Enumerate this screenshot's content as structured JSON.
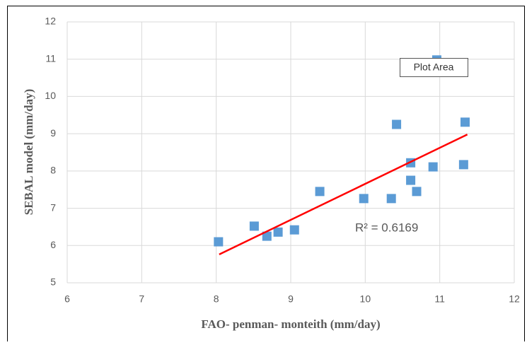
{
  "chart_data": {
    "type": "scatter",
    "x_label": "FAO- penman- monteith (mm/day)",
    "y_label": "SEBAL model (mm/day)",
    "xlim": [
      6,
      12
    ],
    "xticks": [
      6,
      7,
      8,
      9,
      10,
      11,
      12
    ],
    "ylim": [
      5,
      12
    ],
    "yticks": [
      5,
      6,
      7,
      8,
      9,
      10,
      11,
      12
    ],
    "grid": true,
    "series": [
      {
        "color": "#5b9bd5",
        "x": [
          8.03,
          8.51,
          8.68,
          8.83,
          9.05,
          9.39,
          9.98,
          10.35,
          10.42,
          10.61,
          10.61,
          10.69,
          10.91,
          10.96,
          11.32,
          11.34
        ],
        "values": [
          6.1,
          6.52,
          6.25,
          6.36,
          6.42,
          7.45,
          7.26,
          7.26,
          9.25,
          8.22,
          7.75,
          7.45,
          8.11,
          10.98,
          8.17,
          9.31
        ]
      }
    ],
    "trendline": {
      "color": "#ff0000",
      "x": [
        8.04,
        11.37
      ],
      "values": [
        5.76,
        8.98
      ]
    },
    "annotation": "R² = 0.6169",
    "tooltip": "Plot Area"
  }
}
